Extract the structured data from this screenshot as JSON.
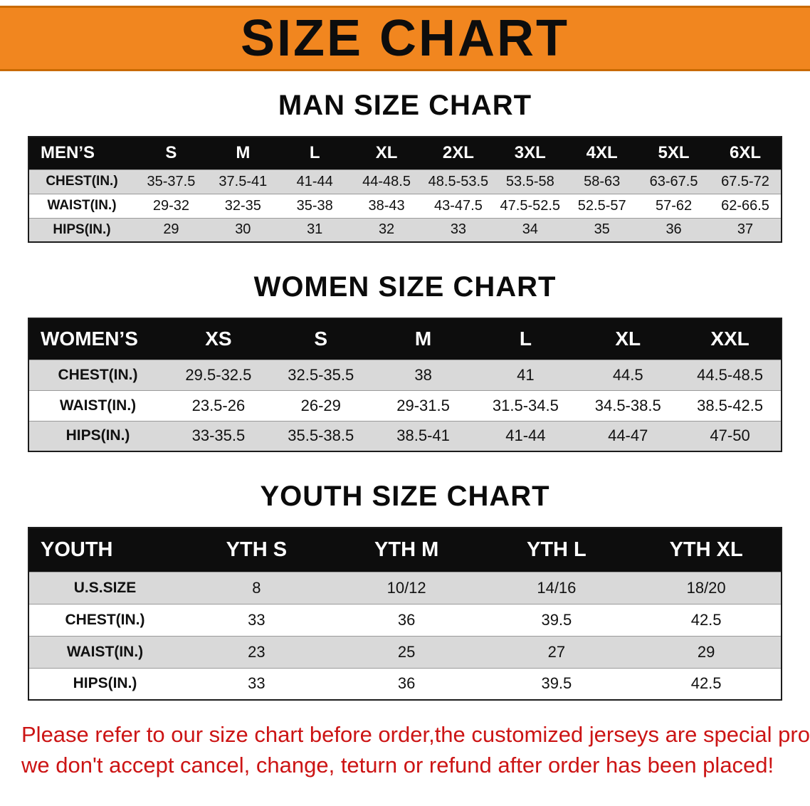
{
  "colors": {
    "banner_bg": "#f1861f",
    "banner_edge": "#c96a00",
    "table_header_bg": "#0d0d0d",
    "row_alt_bg": "#d9d9d9",
    "disclaimer_text": "#cc1414"
  },
  "banner": {
    "title": "SIZE CHART"
  },
  "men": {
    "heading": "MAN SIZE CHART",
    "table": {
      "header": [
        "MEN’S",
        "S",
        "M",
        "L",
        "XL",
        "2XL",
        "3XL",
        "4XL",
        "5XL",
        "6XL"
      ],
      "rows": [
        [
          "CHEST(IN.)",
          "35-37.5",
          "37.5-41",
          "41-44",
          "44-48.5",
          "48.5-53.5",
          "53.5-58",
          "58-63",
          "63-67.5",
          "67.5-72"
        ],
        [
          "WAIST(IN.)",
          "29-32",
          "32-35",
          "35-38",
          "38-43",
          "43-47.5",
          "47.5-52.5",
          "52.5-57",
          "57-62",
          "62-66.5"
        ],
        [
          "HIPS(IN.)",
          "29",
          "30",
          "31",
          "32",
          "33",
          "34",
          "35",
          "36",
          "37"
        ]
      ]
    }
  },
  "women": {
    "heading": "WOMEN SIZE CHART",
    "table": {
      "header": [
        "WOMEN’S",
        "XS",
        "S",
        "M",
        "L",
        "XL",
        "XXL"
      ],
      "rows": [
        [
          "CHEST(IN.)",
          "29.5-32.5",
          "32.5-35.5",
          "38",
          "41",
          "44.5",
          "44.5-48.5"
        ],
        [
          "WAIST(IN.)",
          "23.5-26",
          "26-29",
          "29-31.5",
          "31.5-34.5",
          "34.5-38.5",
          "38.5-42.5"
        ],
        [
          "HIPS(IN.)",
          "33-35.5",
          "35.5-38.5",
          "38.5-41",
          "41-44",
          "44-47",
          "47-50"
        ]
      ]
    }
  },
  "youth": {
    "heading": "YOUTH SIZE CHART",
    "table": {
      "header": [
        "YOUTH",
        "YTH S",
        "YTH M",
        "YTH L",
        "YTH XL"
      ],
      "rows": [
        [
          "U.S.SIZE",
          "8",
          "10/12",
          "14/16",
          "18/20"
        ],
        [
          "CHEST(IN.)",
          "33",
          "36",
          "39.5",
          "42.5"
        ],
        [
          "WAIST(IN.)",
          "23",
          "25",
          "27",
          "29"
        ],
        [
          "HIPS(IN.)",
          "33",
          "36",
          "39.5",
          "42.5"
        ]
      ]
    }
  },
  "disclaimer": {
    "line1": "Please refer to our size chart before order,the customized jerseys are special products,",
    "line2": "we don't accept cancel, change, teturn or refund after order has been placed!"
  }
}
